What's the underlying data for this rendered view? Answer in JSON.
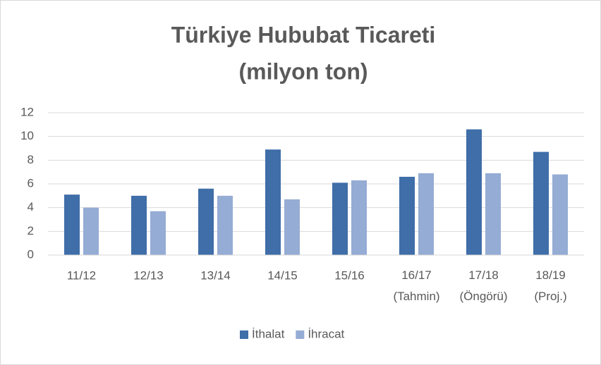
{
  "chart_data": {
    "type": "bar",
    "title": "Türkiye Hububat Ticareti",
    "subtitle": "(milyon ton)",
    "categories": [
      "11/12",
      "12/13",
      "13/14",
      "14/15",
      "15/16",
      "16/17 (Tahmin)",
      "17/18 (Öngörü)",
      "18/19 (Proj.)"
    ],
    "series": [
      {
        "name": "İthalat",
        "color": "#3f6ea8",
        "values": [
          5.1,
          5.0,
          5.6,
          8.9,
          6.1,
          6.6,
          10.6,
          8.7
        ]
      },
      {
        "name": "İhracat",
        "color": "#95acd4",
        "values": [
          4.0,
          3.7,
          5.0,
          4.7,
          6.3,
          6.9,
          6.9,
          6.8
        ]
      }
    ],
    "ylim": [
      0,
      12
    ],
    "yticks": [
      0,
      2,
      4,
      6,
      8,
      10,
      12
    ],
    "grid": true,
    "legend": "bottom"
  }
}
